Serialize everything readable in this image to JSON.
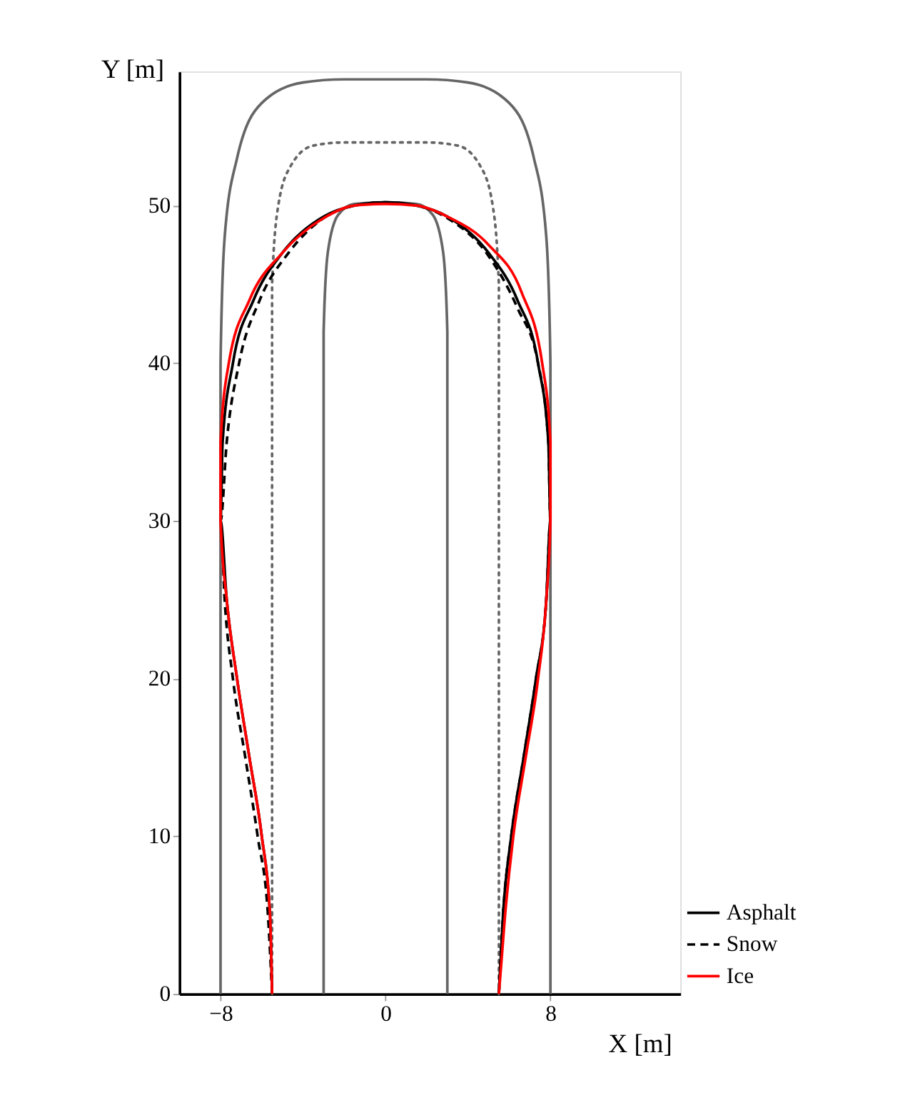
{
  "chart_data": {
    "type": "line",
    "xlabel": "X [m]",
    "ylabel": "Y [m]",
    "xlim": [
      -10,
      14.3
    ],
    "ylim": [
      0,
      58.5
    ],
    "xticks": [
      -8,
      0,
      8
    ],
    "yticks": [
      0,
      10,
      20,
      30,
      40,
      50
    ],
    "grid": false,
    "legend": "bottom right",
    "series": [
      {
        "color": "#666666",
        "line_style": "solid",
        "x": [
          -8,
          -8,
          -7.8,
          -7.2,
          -6,
          -4,
          -2,
          2,
          4,
          6,
          7.2,
          7.8,
          8,
          8
        ],
        "values": [
          0,
          40,
          48,
          53,
          56.5,
          57.8,
          58,
          58,
          57.8,
          56.5,
          53,
          48,
          40,
          0
        ]
      },
      {
        "color": "#666666",
        "line_style": "dotted",
        "x": [
          -5.5,
          -5.5,
          -5.2,
          -4.6,
          -3.5,
          -2,
          2,
          3.5,
          4.6,
          5.2,
          5.5,
          5.5
        ],
        "values": [
          0,
          45,
          50,
          52.5,
          53.8,
          54,
          54,
          53.8,
          52.5,
          50,
          45,
          0
        ]
      },
      {
        "color": "#666666",
        "line_style": "solid",
        "x": [
          -3,
          -3,
          -2.8,
          -2.3,
          -1.5,
          0,
          1.5,
          2.3,
          2.8,
          3,
          3
        ],
        "values": [
          0,
          42,
          47,
          49.4,
          50.1,
          50.2,
          50.1,
          49.4,
          47,
          42,
          0
        ]
      },
      {
        "name": "Asphalt",
        "color": "#000000",
        "line_style": "solid",
        "x": [
          -5.5,
          -5.6,
          -6,
          -6.6,
          -7.2,
          -7.7,
          -8,
          -7.9,
          -7.4,
          -6.4,
          -5,
          -3,
          -1.5,
          0,
          1.5,
          3,
          5,
          6.4,
          7.4,
          7.9,
          8,
          7.8,
          7.3,
          6.7,
          6.1,
          5.7,
          5.5
        ],
        "values": [
          0,
          5,
          10,
          15,
          20,
          25,
          30,
          35,
          40,
          44,
          47,
          49.3,
          50,
          50.2,
          50,
          49.3,
          47,
          44,
          40,
          35,
          30,
          25,
          20,
          15,
          10,
          5,
          0
        ]
      },
      {
        "name": "Snow",
        "color": "#000000",
        "line_style": "dashed",
        "x": [
          -5.5,
          -5.7,
          -6.2,
          -6.8,
          -7.4,
          -7.8,
          -8,
          -7.7,
          -7.1,
          -6.1,
          -4.7,
          -3,
          -1.5,
          0,
          1.5,
          3,
          5,
          6.4,
          7.4,
          7.9,
          8,
          7.8,
          7.3,
          6.7,
          6.1,
          5.7,
          5.5
        ],
        "values": [
          0,
          5,
          10,
          15,
          20,
          25,
          30,
          35,
          40,
          44,
          47,
          49.2,
          50,
          50.2,
          50,
          49.2,
          46.8,
          43.5,
          40,
          35,
          30,
          25,
          20,
          15,
          10,
          5,
          0
        ]
      },
      {
        "name": "Ice",
        "color": "#ff0000",
        "line_style": "solid",
        "x": [
          -5.5,
          -5.6,
          -6,
          -6.6,
          -7.2,
          -7.7,
          -8,
          -8,
          -7.6,
          -6.6,
          -5,
          -3,
          -1.5,
          0,
          1.5,
          3,
          5,
          6.6,
          7.6,
          8,
          8,
          7.8,
          7.4,
          6.8,
          6.2,
          5.8,
          5.5
        ],
        "values": [
          0,
          5,
          10,
          15,
          20,
          25,
          30,
          35,
          40,
          44,
          47,
          49.2,
          50,
          50.1,
          50,
          49.3,
          47.5,
          44.5,
          40,
          35,
          30,
          25,
          20,
          15,
          10,
          5,
          0
        ]
      }
    ]
  }
}
